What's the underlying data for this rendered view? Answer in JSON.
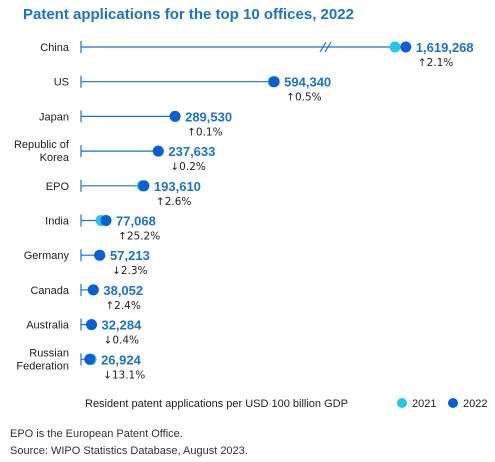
{
  "chart_data": {
    "type": "dot",
    "title": "Patent applications for the top 10 offices, 2022",
    "xlabel": "Resident patent applications per USD 100 billion GDP",
    "axis_break": true,
    "categories": [
      "China",
      "US",
      "Japan",
      "Republic of Korea",
      "EPO",
      "India",
      "Germany",
      "Canada",
      "Australia",
      "Russian Federation"
    ],
    "series": [
      {
        "name": "2021",
        "color": "#29c4e8",
        "values": [
          1586000,
          591400,
          289200,
          238100,
          188700,
          61560,
          58560,
          37160,
          32410,
          30980
        ]
      },
      {
        "name": "2022",
        "color": "#0a5fd1",
        "values": [
          1619268,
          594340,
          289530,
          237633,
          193610,
          77068,
          57213,
          38052,
          32284,
          26924
        ]
      }
    ],
    "value_labels": [
      "1,619,268",
      "594,340",
      "289,530",
      "237,633",
      "193,610",
      "77,068",
      "57,213",
      "38,052",
      "32,284",
      "26,924"
    ],
    "changes": [
      {
        "dir": "up",
        "text": "2.1%"
      },
      {
        "dir": "up",
        "text": "0.5%"
      },
      {
        "dir": "up",
        "text": "0.1%"
      },
      {
        "dir": "down",
        "text": "0.2%"
      },
      {
        "dir": "up",
        "text": "2.6%"
      },
      {
        "dir": "up",
        "text": "25.2%"
      },
      {
        "dir": "down",
        "text": "2.3%"
      },
      {
        "dir": "up",
        "text": "2.4%"
      },
      {
        "dir": "down",
        "text": "0.4%"
      },
      {
        "dir": "down",
        "text": "13.1%"
      }
    ],
    "legend_position": "bottom-right",
    "grid": false
  },
  "footnotes": [
    "EPO is the European Patent Office.",
    "Source: WIPO Statistics Database, August 2023."
  ],
  "colors": {
    "title": "#1a73c9",
    "label": "#1a73c9",
    "axis": "#1a73c9"
  }
}
